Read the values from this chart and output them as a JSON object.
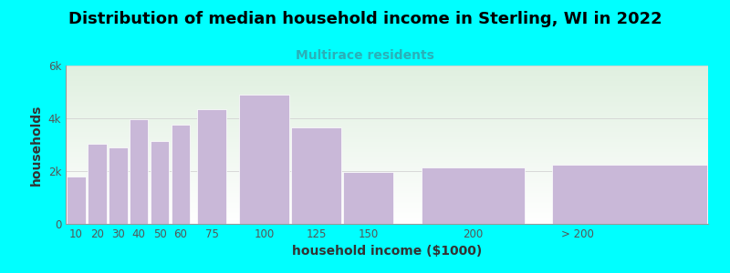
{
  "title": "Distribution of median household income in Sterling, WI in 2022",
  "subtitle": "Multirace residents",
  "xlabel": "household income ($1000)",
  "ylabel": "households",
  "background_color": "#00FFFF",
  "plot_bg_top": "#e0f0e0",
  "plot_bg_bottom": "#ffffff",
  "bar_color": "#c9b8d8",
  "bar_edge_color": "#ffffff",
  "bar_left_edges": [
    5,
    15,
    25,
    35,
    45,
    55,
    67.5,
    87.5,
    112.5,
    137.5,
    175,
    237.5
  ],
  "bar_widths": [
    10,
    10,
    10,
    10,
    10,
    10,
    15,
    25,
    25,
    25,
    50,
    75
  ],
  "values": [
    1800,
    3050,
    2900,
    3950,
    3150,
    3750,
    4350,
    4900,
    3650,
    1950,
    2150,
    2250
  ],
  "xlim": [
    5,
    312.5
  ],
  "xtick_positions": [
    10,
    20,
    30,
    40,
    50,
    60,
    75,
    100,
    125,
    150,
    200,
    250
  ],
  "xtick_labels": [
    "10",
    "20",
    "30",
    "40",
    "50",
    "60",
    "75",
    "100",
    "125",
    "150",
    "200",
    "> 200"
  ],
  "ylim": [
    0,
    6000
  ],
  "yticks": [
    0,
    2000,
    4000,
    6000
  ],
  "ytick_labels": [
    "0",
    "2k",
    "4k",
    "6k"
  ],
  "title_fontsize": 13,
  "subtitle_fontsize": 10,
  "subtitle_color": "#2ab0b8",
  "axis_label_fontsize": 10,
  "tick_fontsize": 8.5
}
